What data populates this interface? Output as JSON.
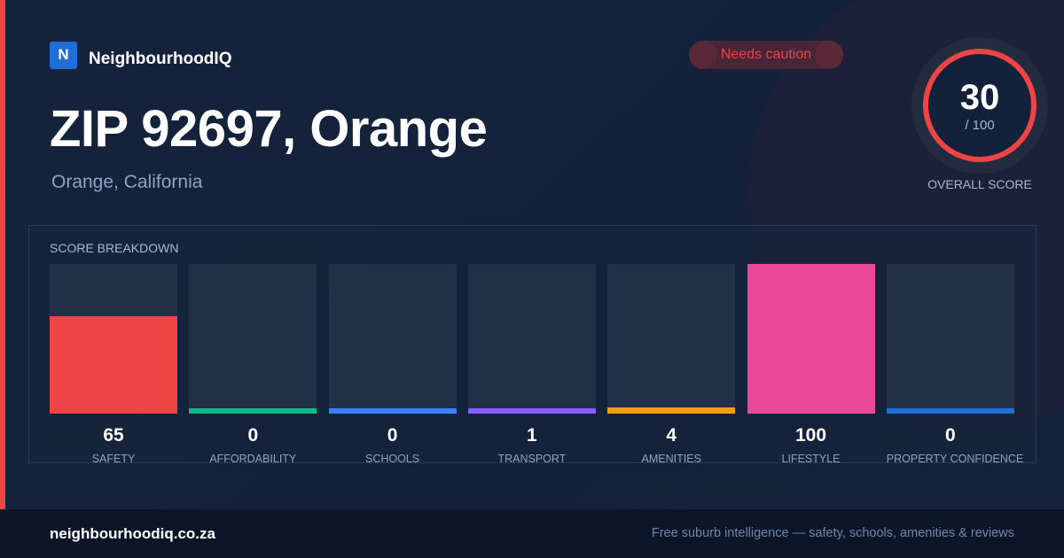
{
  "brand": {
    "logo_letter": "N",
    "name": "NeighbourhoodIQ",
    "color": "#1f6fd6"
  },
  "badge": {
    "label": "Needs caution",
    "color": "#ef4444"
  },
  "title": "ZIP 92697, Orange",
  "subtitle": "Orange, California",
  "overall": {
    "score": "30",
    "max_label": "/ 100",
    "label": "OVERALL SCORE",
    "value": 30,
    "max": 100,
    "color": "#ef4444"
  },
  "footer": {
    "domain": "neighbourhoodiq.co.za",
    "tagline": "Free suburb intelligence — safety, schools, amenities & reviews"
  },
  "chart_data": {
    "type": "bar",
    "title": "SCORE BREAKDOWN",
    "categories": [
      "SAFETY",
      "AFFORDABILITY",
      "SCHOOLS",
      "TRANSPORT",
      "AMENITIES",
      "LIFESTYLE",
      "PROPERTY CONFIDENCE"
    ],
    "values": [
      65,
      0,
      0,
      1,
      4,
      100,
      0
    ],
    "colors": [
      "#ef4444",
      "#10b981",
      "#3b82f6",
      "#8b5cf6",
      "#f59e0b",
      "#ec4899",
      "#1f6fd6"
    ],
    "ylim": [
      0,
      100
    ],
    "grid": false
  }
}
